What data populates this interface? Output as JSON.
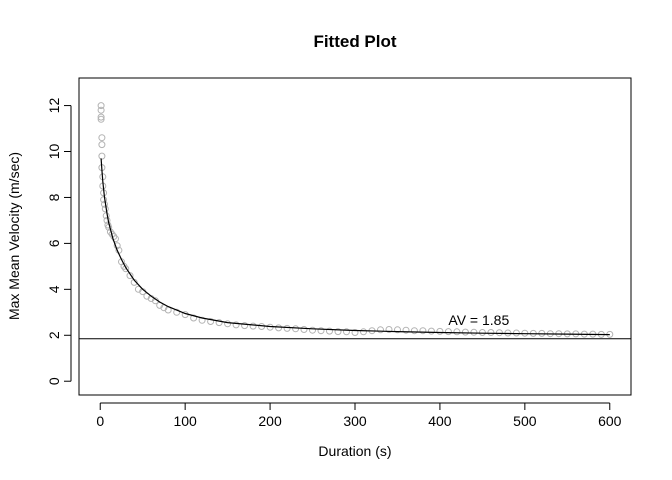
{
  "chart_data": {
    "type": "scatter",
    "title": "Fitted Plot",
    "xlabel": "Duration (s)",
    "ylabel": "Max Mean Velocity (m/sec)",
    "xlim": [
      -25,
      625
    ],
    "ylim": [
      -0.6,
      13.2
    ],
    "xticks": [
      0,
      100,
      200,
      300,
      400,
      500,
      600
    ],
    "yticks": [
      0,
      2,
      4,
      6,
      8,
      10,
      12
    ],
    "grid": false,
    "legend": "none",
    "colors": {
      "points": "#b3b3b3",
      "fit": "#000000",
      "reference": "#000000"
    },
    "series": [
      {
        "kind": "points",
        "x": [
          1,
          1,
          1,
          1,
          2,
          2,
          2,
          2,
          3,
          3,
          4,
          4,
          5,
          6,
          7,
          8,
          9,
          10,
          12,
          14,
          16,
          18,
          20,
          22,
          25,
          28,
          30,
          35,
          40,
          45,
          50,
          55,
          60,
          65,
          70,
          75,
          80,
          90,
          100,
          110,
          120,
          130,
          140,
          150,
          160,
          170,
          180,
          190,
          200,
          210,
          220,
          230,
          240,
          250,
          260,
          270,
          280,
          290,
          300,
          310,
          320,
          330,
          340,
          350,
          360,
          370,
          380,
          390,
          400,
          410,
          420,
          430,
          440,
          450,
          460,
          470,
          480,
          490,
          500,
          510,
          520,
          530,
          540,
          550,
          560,
          570,
          580,
          590,
          600
        ],
        "y": [
          12.0,
          11.8,
          11.5,
          11.4,
          10.6,
          10.3,
          9.8,
          9.3,
          8.9,
          8.5,
          8.2,
          7.9,
          7.7,
          7.5,
          7.2,
          7.0,
          6.8,
          6.7,
          6.5,
          6.4,
          6.3,
          6.2,
          5.9,
          5.7,
          5.2,
          5.0,
          4.9,
          4.6,
          4.3,
          4.0,
          3.9,
          3.7,
          3.6,
          3.5,
          3.3,
          3.2,
          3.1,
          3.0,
          2.9,
          2.75,
          2.65,
          2.6,
          2.55,
          2.5,
          2.45,
          2.42,
          2.4,
          2.38,
          2.35,
          2.32,
          2.3,
          2.28,
          2.25,
          2.22,
          2.2,
          2.18,
          2.16,
          2.15,
          2.12,
          2.15,
          2.2,
          2.24,
          2.25,
          2.24,
          2.22,
          2.2,
          2.2,
          2.18,
          2.17,
          2.16,
          2.15,
          2.14,
          2.13,
          2.12,
          2.12,
          2.11,
          2.1,
          2.1,
          2.09,
          2.08,
          2.08,
          2.07,
          2.07,
          2.06,
          2.06,
          2.05,
          2.05,
          2.04,
          2.04
        ]
      },
      {
        "kind": "fit",
        "x": [
          1,
          2,
          3,
          5,
          8,
          10,
          15,
          20,
          25,
          30,
          40,
          50,
          60,
          70,
          80,
          100,
          120,
          150,
          200,
          250,
          300,
          350,
          400,
          450,
          500,
          550,
          600
        ],
        "y": [
          9.7,
          9.2,
          8.7,
          8.0,
          7.3,
          6.9,
          6.2,
          5.7,
          5.3,
          4.95,
          4.4,
          4.0,
          3.7,
          3.45,
          3.25,
          2.95,
          2.75,
          2.55,
          2.38,
          2.28,
          2.21,
          2.16,
          2.12,
          2.09,
          2.07,
          2.05,
          2.03
        ]
      }
    ],
    "reference_line": {
      "y": 1.85
    },
    "annotation": {
      "text": "AV = 1.85",
      "x": 410,
      "y": 2.45
    }
  }
}
